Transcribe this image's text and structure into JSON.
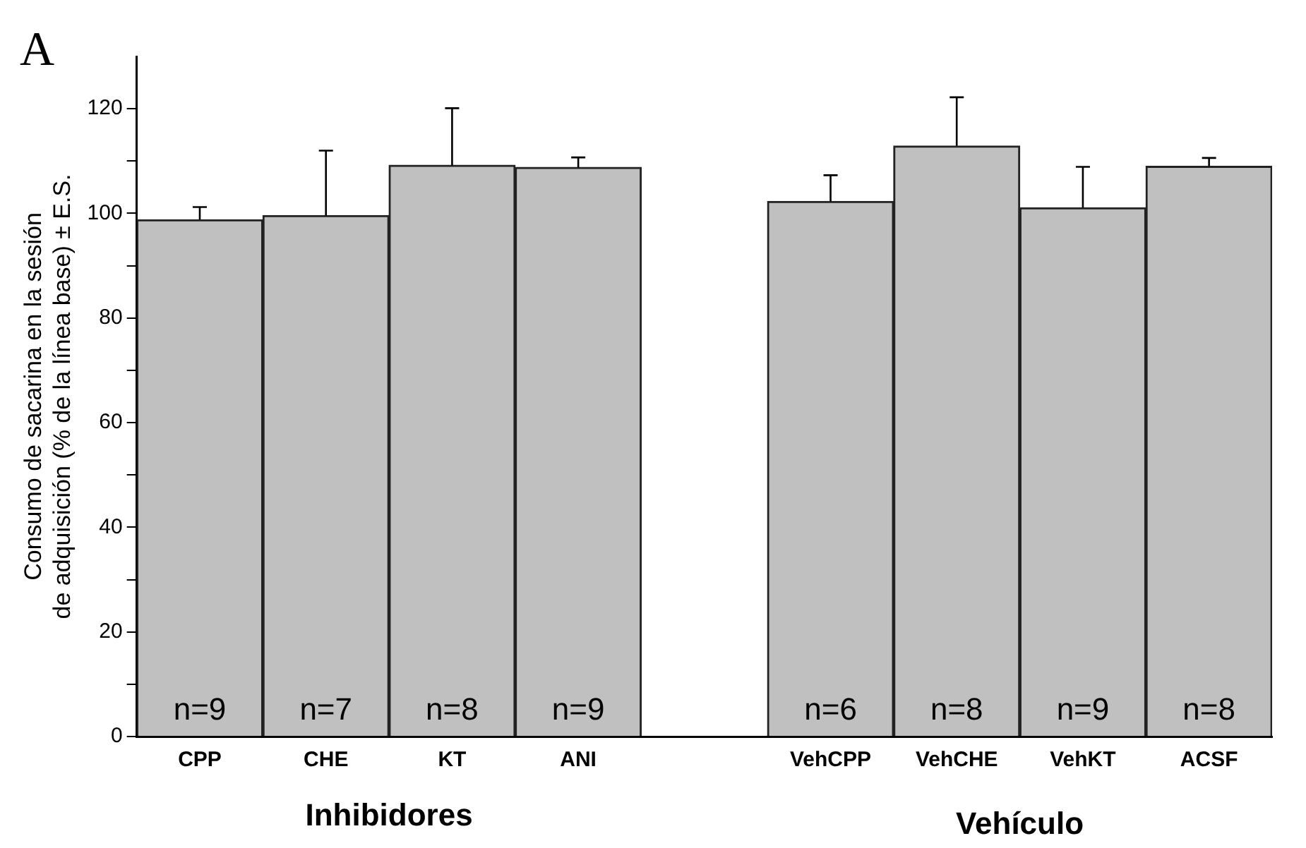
{
  "chart_data": {
    "type": "bar",
    "ylabel": "Consumo de sacarina en la sesión\nde adquisición (% de la línea base) ± E.S.",
    "categories": [
      "CPP",
      "CHE",
      "KT",
      "ANI",
      null,
      "VehCPP",
      "VehCHE",
      "VehKT",
      "ACSF"
    ],
    "values": [
      98.8,
      99.6,
      109.2,
      108.8,
      null,
      102.3,
      112.9,
      101.1,
      109
    ],
    "errors": [
      [
        98.8,
        101.2
      ],
      [
        99.6,
        112
      ],
      [
        109.2,
        120.1
      ],
      [
        108.8,
        110.7
      ],
      null,
      [
        102.3,
        107.3
      ],
      [
        112.9,
        122.2
      ],
      [
        101.1,
        108.9
      ],
      [
        109,
        110.6
      ]
    ],
    "color": "#c0c0c0",
    "ylim": [
      0,
      130
    ],
    "yticks": [
      0,
      {
        "value": 10,
        "label": null
      },
      20,
      {
        "value": 30,
        "label": null
      },
      40,
      {
        "value": 50,
        "label": null
      },
      60,
      {
        "value": 70,
        "label": null
      },
      80,
      {
        "value": 90,
        "label": null
      },
      100,
      {
        "value": 110,
        "label": null
      },
      120
    ],
    "grid": false,
    "legend": false,
    "annotations": [
      "A",
      "Inhibidores",
      "Vehículo",
      "n=9",
      "n=7",
      "n=8",
      "n=9",
      "n=6",
      "n=8",
      "n=9",
      "n=8"
    ]
  }
}
